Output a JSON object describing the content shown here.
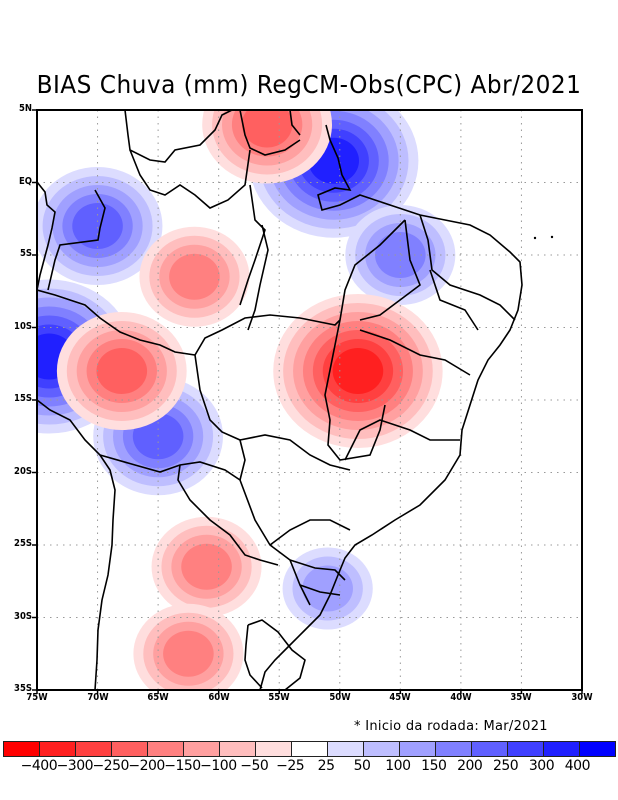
{
  "title": "BIAS Chuva (mm) RegCM-Obs(CPC) Abr/2021",
  "note": "* Inicio da rodada: Mar/2021",
  "map": {
    "variable": "Rainfall bias (mm), RegCM minus CPC observations",
    "lon_range": [
      -75,
      -30
    ],
    "lat_range": [
      -35,
      5
    ],
    "y_ticks": [
      "5N",
      "EQ",
      "5S",
      "10S",
      "15S",
      "20S",
      "25S",
      "30S",
      "35S"
    ],
    "x_ticks": [
      "75W",
      "70W",
      "65W",
      "60W",
      "55W",
      "50W",
      "45W",
      "40W",
      "35W",
      "30W"
    ],
    "grid": "dotted"
  },
  "colorbar": {
    "colors": [
      "#ff0000",
      "#ff2020",
      "#ff4040",
      "#ff6060",
      "#ff8080",
      "#ffa0a0",
      "#ffbebe",
      "#ffdede",
      "#ffffff",
      "#dcdcff",
      "#bebeff",
      "#a0a0ff",
      "#8080ff",
      "#6060ff",
      "#4040ff",
      "#2020ff",
      "#0000ff"
    ],
    "labels": [
      "-400",
      "-300",
      "-250",
      "-200",
      "-150",
      "-100",
      "-50",
      "-25",
      "25",
      "50",
      "100",
      "150",
      "200",
      "250",
      "300",
      "400"
    ]
  },
  "features": [
    {
      "name": "strong-positive-west-amazon",
      "lon": -74,
      "lat": -12,
      "value": 300
    },
    {
      "name": "positive-amazonas",
      "lon": -70,
      "lat": -3,
      "value": 200
    },
    {
      "name": "positive-amapa-coast",
      "lon": -50.5,
      "lat": 1.5,
      "value": 300
    },
    {
      "name": "positive-bolivia",
      "lon": -65,
      "lat": -17.5,
      "value": 200
    },
    {
      "name": "positive-maranhao",
      "lon": -45,
      "lat": -5,
      "value": 150
    },
    {
      "name": "positive-south-brazil",
      "lon": -51,
      "lat": -28,
      "value": 100
    },
    {
      "name": "negative-goias-bahia",
      "lon": -48.5,
      "lat": -13,
      "value": -300
    },
    {
      "name": "negative-mato-grosso-west",
      "lon": -68,
      "lat": -13,
      "value": -200
    },
    {
      "name": "negative-para",
      "lon": -62,
      "lat": -6.5,
      "value": -150
    },
    {
      "name": "negative-paraguay",
      "lon": -61,
      "lat": -26.5,
      "value": -150
    },
    {
      "name": "negative-argentina",
      "lon": -62.5,
      "lat": -32.5,
      "value": -150
    },
    {
      "name": "negative-north-para",
      "lon": -56,
      "lat": 4,
      "value": -200
    }
  ]
}
